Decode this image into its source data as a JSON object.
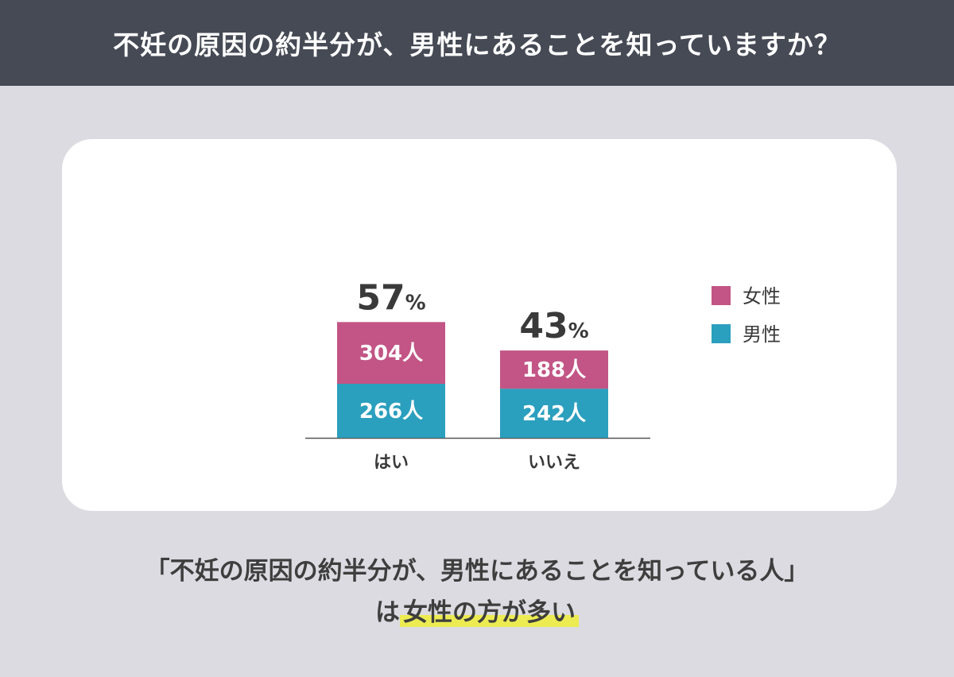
{
  "header": {
    "title": "不妊の原因の約半分が、男性にあることを知っていますか？"
  },
  "chart_data": {
    "type": "bar",
    "stacked": true,
    "categories": [
      "はい",
      "いいえ"
    ],
    "series": [
      {
        "name": "女性",
        "color": "#c25585",
        "values": [
          304,
          188
        ],
        "labels": [
          "304人",
          "188人"
        ]
      },
      {
        "name": "男性",
        "color": "#2b9fbe",
        "values": [
          266,
          242
        ],
        "labels": [
          "266人",
          "242人"
        ]
      }
    ],
    "totals_pct": [
      57,
      43
    ],
    "pct_unit": "%",
    "legend_position": "right",
    "grid": false
  },
  "caption": {
    "line1": "「不妊の原因の約半分が、男性にあることを知っている人」",
    "line2_prefix": "は",
    "line2_highlight": "女性の方が多い"
  }
}
